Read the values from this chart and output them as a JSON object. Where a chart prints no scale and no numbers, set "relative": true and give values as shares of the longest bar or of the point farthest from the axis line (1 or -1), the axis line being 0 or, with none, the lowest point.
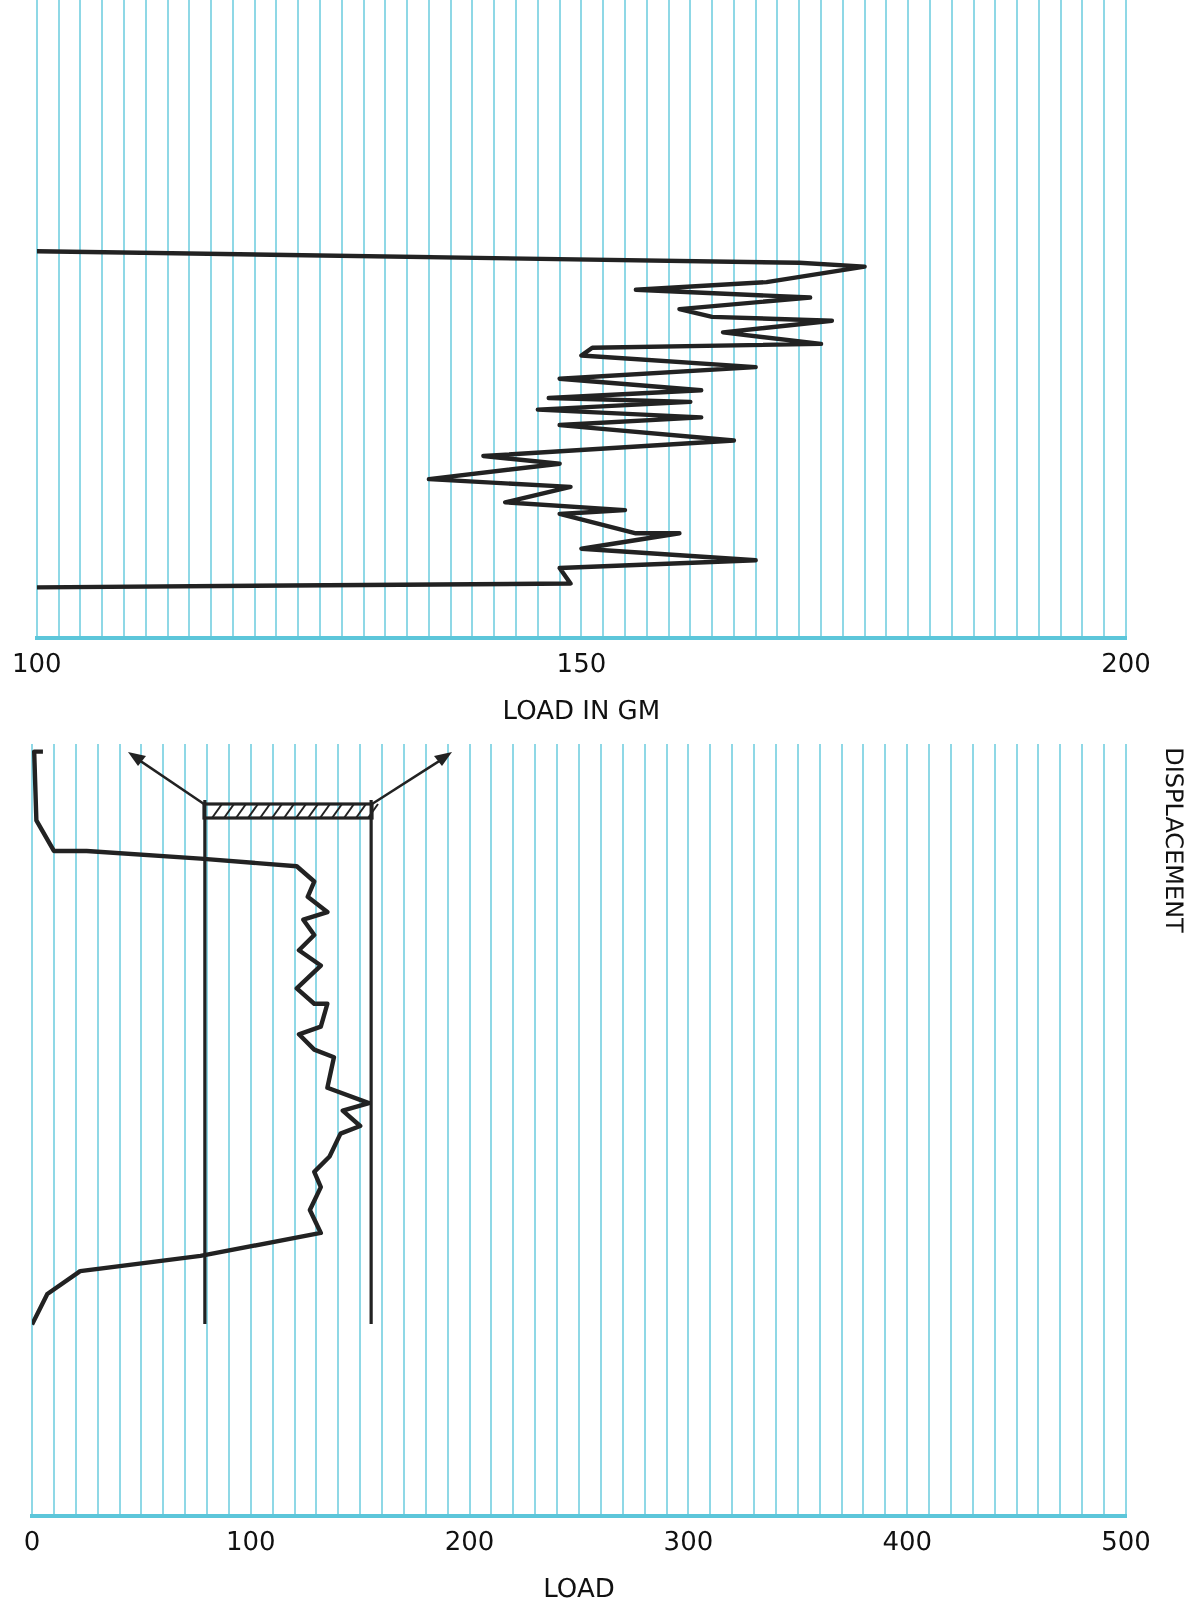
{
  "chart_data": [
    {
      "type": "line",
      "xlabel": "LOAD IN GM",
      "relative": true,
      "grid": "x",
      "legend": false,
      "marker": "none",
      "line_style": "solid",
      "xlim": [
        100,
        200
      ],
      "xticks": [
        100,
        {
          "value": 102,
          "label": null
        },
        {
          "value": 104,
          "label": null
        },
        {
          "value": 106,
          "label": null
        },
        {
          "value": 108,
          "label": null
        },
        {
          "value": 110,
          "label": null
        },
        {
          "value": 112,
          "label": null
        },
        {
          "value": 114,
          "label": null
        },
        {
          "value": 116,
          "label": null
        },
        {
          "value": 118,
          "label": null
        },
        {
          "value": 120,
          "label": null
        },
        {
          "value": 122,
          "label": null
        },
        {
          "value": 124,
          "label": null
        },
        {
          "value": 126,
          "label": null
        },
        {
          "value": 128,
          "label": null
        },
        {
          "value": 130,
          "label": null
        },
        {
          "value": 132,
          "label": null
        },
        {
          "value": 134,
          "label": null
        },
        {
          "value": 136,
          "label": null
        },
        {
          "value": 138,
          "label": null
        },
        {
          "value": 140,
          "label": null
        },
        {
          "value": 142,
          "label": null
        },
        {
          "value": 144,
          "label": null
        },
        {
          "value": 146,
          "label": null
        },
        {
          "value": 148,
          "label": null
        },
        150,
        {
          "value": 152,
          "label": null
        },
        {
          "value": 154,
          "label": null
        },
        {
          "value": 156,
          "label": null
        },
        {
          "value": 158,
          "label": null
        },
        {
          "value": 160,
          "label": null
        },
        {
          "value": 162,
          "label": null
        },
        {
          "value": 164,
          "label": null
        },
        {
          "value": 166,
          "label": null
        },
        {
          "value": 168,
          "label": null
        },
        {
          "value": 170,
          "label": null
        },
        {
          "value": 172,
          "label": null
        },
        {
          "value": 174,
          "label": null
        },
        {
          "value": 176,
          "label": null
        },
        {
          "value": 178,
          "label": null
        },
        {
          "value": 180,
          "label": null
        },
        {
          "value": 182,
          "label": null
        },
        {
          "value": 184,
          "label": null
        },
        {
          "value": 186,
          "label": null
        },
        {
          "value": 188,
          "label": null
        },
        {
          "value": 190,
          "label": null
        },
        {
          "value": 192,
          "label": null
        },
        {
          "value": 194,
          "label": null
        },
        {
          "value": 196,
          "label": null
        },
        {
          "value": 198,
          "label": null
        },
        200
      ],
      "series": [
        {
          "color": "#222222",
          "x": [
            100,
            170,
            176,
            167,
            155,
            171,
            159,
            162,
            173,
            163,
            172,
            151,
            150,
            166,
            148,
            161,
            147,
            160,
            146,
            161,
            148,
            164,
            141,
            148,
            136,
            149,
            143,
            154,
            148,
            155,
            159,
            150,
            166,
            148,
            149,
            100
          ],
          "values": [
            1,
            0.97,
            0.96,
            0.92,
            0.9,
            0.88,
            0.85,
            0.83,
            0.82,
            0.79,
            0.76,
            0.75,
            0.73,
            0.7,
            0.67,
            0.64,
            0.62,
            0.61,
            0.59,
            0.57,
            0.55,
            0.51,
            0.47,
            0.45,
            0.41,
            0.39,
            0.35,
            0.33,
            0.32,
            0.27,
            0.27,
            0.23,
            0.2,
            0.18,
            0.14,
            0.13
          ]
        }
      ]
    },
    {
      "type": "line",
      "xlabel": "LOAD",
      "ylabel": "DISPLACEMENT",
      "relative": true,
      "grid": "x",
      "legend": false,
      "marker": "none",
      "line_style": "solid",
      "xlim": [
        0,
        500
      ],
      "xticks": [
        0,
        {
          "value": 10,
          "label": null
        },
        {
          "value": 20,
          "label": null
        },
        {
          "value": 30,
          "label": null
        },
        {
          "value": 40,
          "label": null
        },
        {
          "value": 50,
          "label": null
        },
        {
          "value": 60,
          "label": null
        },
        {
          "value": 70,
          "label": null
        },
        {
          "value": 80,
          "label": null
        },
        {
          "value": 90,
          "label": null
        },
        100,
        {
          "value": 110,
          "label": null
        },
        {
          "value": 120,
          "label": null
        },
        {
          "value": 130,
          "label": null
        },
        {
          "value": 140,
          "label": null
        },
        {
          "value": 150,
          "label": null
        },
        {
          "value": 160,
          "label": null
        },
        {
          "value": 170,
          "label": null
        },
        {
          "value": 180,
          "label": null
        },
        {
          "value": 190,
          "label": null
        },
        200,
        {
          "value": 210,
          "label": null
        },
        {
          "value": 220,
          "label": null
        },
        {
          "value": 230,
          "label": null
        },
        {
          "value": 240,
          "label": null
        },
        {
          "value": 250,
          "label": null
        },
        {
          "value": 260,
          "label": null
        },
        {
          "value": 270,
          "label": null
        },
        {
          "value": 280,
          "label": null
        },
        {
          "value": 290,
          "label": null
        },
        300,
        {
          "value": 310,
          "label": null
        },
        {
          "value": 320,
          "label": null
        },
        {
          "value": 330,
          "label": null
        },
        {
          "value": 340,
          "label": null
        },
        {
          "value": 350,
          "label": null
        },
        {
          "value": 360,
          "label": null
        },
        {
          "value": 370,
          "label": null
        },
        {
          "value": 380,
          "label": null
        },
        {
          "value": 390,
          "label": null
        },
        400,
        {
          "value": 410,
          "label": null
        },
        {
          "value": 420,
          "label": null
        },
        {
          "value": 430,
          "label": null
        },
        {
          "value": 440,
          "label": null
        },
        {
          "value": 450,
          "label": null
        },
        {
          "value": 460,
          "label": null
        },
        {
          "value": 470,
          "label": null
        },
        {
          "value": 480,
          "label": null
        },
        {
          "value": 490,
          "label": null
        },
        500
      ],
      "ref_lines": [
        {
          "axis": "x",
          "value": 79,
          "color": "#222222"
        },
        {
          "axis": "x",
          "value": 155,
          "color": "#222222"
        }
      ],
      "series": [
        {
          "color": "#222222",
          "x": [
            5,
            1,
            2,
            10,
            25,
            77,
            121,
            129,
            126,
            135,
            124,
            129,
            122,
            132,
            121,
            129,
            135,
            132,
            122,
            129,
            138,
            135,
            154,
            142,
            150,
            141,
            136,
            129,
            132,
            127,
            132,
            77,
            22,
            7,
            0
          ],
          "values": [
            1,
            1,
            0.91,
            0.87,
            0.87,
            0.86,
            0.85,
            0.83,
            0.81,
            0.79,
            0.78,
            0.76,
            0.74,
            0.72,
            0.69,
            0.67,
            0.67,
            0.64,
            0.63,
            0.61,
            0.6,
            0.56,
            0.54,
            0.53,
            0.51,
            0.5,
            0.47,
            0.45,
            0.43,
            0.4,
            0.37,
            0.34,
            0.32,
            0.29,
            0.25
          ]
        }
      ]
    }
  ]
}
